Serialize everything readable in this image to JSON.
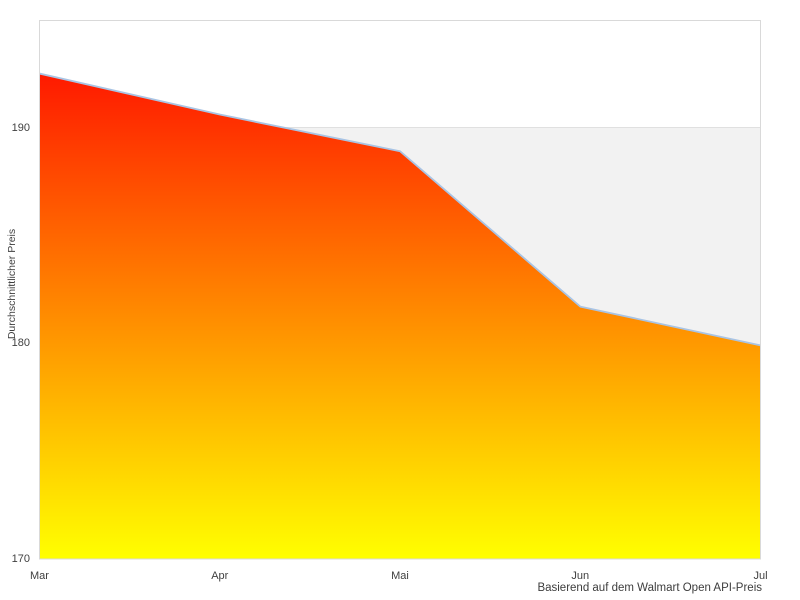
{
  "chart_data": {
    "type": "area",
    "title": "",
    "x": [
      "Mar",
      "Apr",
      "Mai",
      "Jun",
      "Jul"
    ],
    "values": [
      192.5,
      190.6,
      188.9,
      181.7,
      179.9
    ],
    "series": [
      {
        "name": "Durchschnittlicher Preis",
        "values": [
          192.5,
          190.6,
          188.9,
          181.7,
          179.9
        ]
      }
    ],
    "xlabel": "",
    "ylabel": "Durchschnittlicher Preis",
    "caption": "Basierend auf dem Walmart Open API-Preis",
    "yticks": [
      170,
      180,
      190
    ],
    "ylim": [
      170,
      195
    ],
    "gridlines_y": [
      190
    ],
    "gray_band_y_range": [
      170,
      190
    ],
    "legend": "none",
    "colors": {
      "area_gradient_top": "#ff0000",
      "area_gradient_bottom": "#ffff00",
      "line": "#a9c4e4",
      "band_fill": "#f2f2f2",
      "plot_border": "#d9d9d9",
      "gridline": "#e0e0e0",
      "text": "#3f3f3f",
      "background": "#ffffff"
    }
  }
}
